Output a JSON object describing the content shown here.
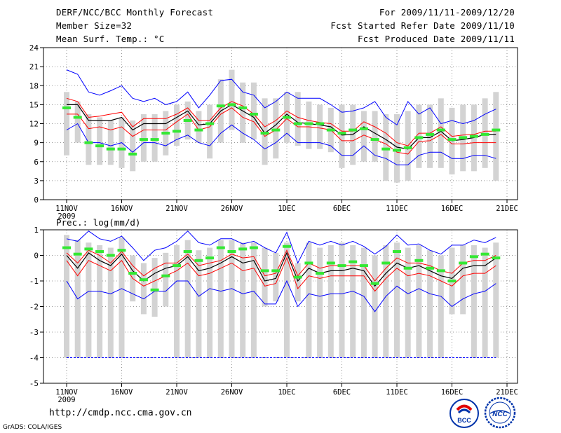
{
  "header": {
    "title": "DERF/NCC/BCC Monthly Forecast",
    "member_size": "Member Size=32",
    "variable": "Mean Surf. Temp.: °C",
    "period": "For 2009/11/11-2009/12/20",
    "refer_date": "Fcst Started Refer Date 2009/11/10",
    "produced_date": "Fcst Produced Date 2009/11/11"
  },
  "footer": {
    "url": "http://cmdp.ncc.cma.gov.cn",
    "credit": "GrADS: COLA/IGES",
    "logo_bcc": "BCC",
    "logo_ncc": "NCC"
  },
  "colors": {
    "mean": "#000000",
    "max_min": "#0000ff",
    "std": "#ff0000",
    "obs": "#33e833",
    "bar": "#d3d3d3",
    "grid": "#777777"
  },
  "chart_data": [
    {
      "type": "line",
      "title": "Mean Surf. Temp.: °C",
      "ylim": [
        0,
        24
      ],
      "yticks": [
        0,
        3,
        6,
        9,
        12,
        15,
        18,
        21,
        24
      ],
      "xlim": [
        1,
        40
      ],
      "xticks": [
        {
          "day": 1,
          "label": "11NOV",
          "sub": "2009"
        },
        {
          "day": 6,
          "label": "16NOV"
        },
        {
          "day": 11,
          "label": "21NOV"
        },
        {
          "day": 16,
          "label": "26NOV"
        },
        {
          "day": 21,
          "label": "1DEC"
        },
        {
          "day": 26,
          "label": "6DEC"
        },
        {
          "day": 31,
          "label": "11DEC"
        },
        {
          "day": 36,
          "label": "16DEC"
        },
        {
          "day": 41,
          "label": "21DEC"
        }
      ],
      "days": [
        1,
        2,
        3,
        4,
        5,
        6,
        7,
        8,
        9,
        10,
        11,
        12,
        13,
        14,
        15,
        16,
        17,
        18,
        19,
        20,
        21,
        22,
        23,
        24,
        25,
        26,
        27,
        28,
        29,
        30,
        31,
        32,
        33,
        34,
        35,
        36,
        37,
        38,
        39,
        40
      ],
      "series": [
        {
          "name": "max",
          "values": [
            20.5,
            19.8,
            17.0,
            16.5,
            17.2,
            18.0,
            16.0,
            15.5,
            16.0,
            15.0,
            15.5,
            17.0,
            14.5,
            16.5,
            18.8,
            19.0,
            17.0,
            16.5,
            14.5,
            15.5,
            17.0,
            16.0,
            16.0,
            16.0,
            15.0,
            13.8,
            14.0,
            14.5,
            15.5,
            13.0,
            11.8,
            15.5,
            13.5,
            14.5,
            12.0,
            12.5,
            12.0,
            12.5,
            13.5,
            14.3
          ]
        },
        {
          "name": "mean_plus_std",
          "values": [
            16.0,
            15.5,
            13.0,
            13.2,
            13.5,
            13.8,
            11.5,
            12.8,
            12.8,
            12.8,
            13.5,
            14.5,
            12.5,
            12.5,
            14.5,
            15.5,
            14.8,
            13.5,
            11.5,
            12.5,
            14.0,
            13.0,
            12.5,
            12.2,
            12.0,
            10.8,
            10.8,
            12.3,
            11.5,
            10.5,
            9.0,
            8.5,
            10.5,
            10.5,
            11.5,
            10.0,
            10.2,
            10.3,
            10.8,
            10.8
          ]
        },
        {
          "name": "mean",
          "values": [
            15.0,
            15.0,
            12.5,
            12.5,
            12.5,
            13.0,
            11.0,
            12.0,
            12.0,
            12.0,
            13.0,
            14.0,
            11.8,
            12.0,
            14.0,
            15.0,
            14.0,
            13.0,
            10.5,
            11.8,
            13.5,
            12.2,
            12.0,
            11.8,
            11.5,
            10.2,
            10.3,
            11.5,
            10.5,
            9.5,
            8.3,
            8.0,
            9.8,
            9.8,
            10.8,
            9.3,
            9.5,
            9.8,
            10.3,
            10.3
          ]
        },
        {
          "name": "mean_minus_std",
          "values": [
            13.5,
            13.5,
            11.2,
            11.5,
            11.0,
            11.5,
            10.0,
            11.0,
            11.0,
            11.0,
            12.3,
            13.5,
            11.0,
            11.5,
            13.5,
            14.5,
            13.0,
            12.3,
            10.0,
            11.0,
            12.8,
            11.5,
            11.5,
            11.3,
            11.0,
            9.3,
            9.3,
            10.2,
            9.5,
            8.8,
            7.5,
            7.2,
            9.2,
            9.3,
            10.3,
            8.8,
            8.8,
            9.0,
            9.0,
            9.0
          ]
        },
        {
          "name": "min",
          "values": [
            11.0,
            12.0,
            9.0,
            9.0,
            8.5,
            9.0,
            7.5,
            9.0,
            9.0,
            8.5,
            9.5,
            10.2,
            9.0,
            8.5,
            10.5,
            11.8,
            10.5,
            9.5,
            8.0,
            9.0,
            10.5,
            9.0,
            9.0,
            9.0,
            8.5,
            7.0,
            7.0,
            8.5,
            7.0,
            6.5,
            5.5,
            5.5,
            7.0,
            7.5,
            7.5,
            6.5,
            6.5,
            7.0,
            7.0,
            6.5
          ]
        },
        {
          "name": "observed",
          "values": [
            14.5,
            13.0,
            9.0,
            8.5,
            8.0,
            8.0,
            7.2,
            9.5,
            9.5,
            10.5,
            10.8,
            12.5,
            11.0,
            12.0,
            14.8,
            15.0,
            14.5,
            13.5,
            10.5,
            11.0,
            13.0,
            12.0,
            12.0,
            12.0,
            11.0,
            10.5,
            11.0,
            11.2,
            9.5,
            8.0,
            7.8,
            8.2,
            9.8,
            10.3,
            11.0,
            9.5,
            9.8,
            10.0,
            10.3,
            11.0
          ]
        },
        {
          "name": "obs_spread_upper",
          "values": [
            17.0,
            15.5,
            13.5,
            13.0,
            12.5,
            13.0,
            12.5,
            13.5,
            13.5,
            14.0,
            15.0,
            15.5,
            14.0,
            15.0,
            19.0,
            20.5,
            18.5,
            18.5,
            16.0,
            16.0,
            17.0,
            17.0,
            15.5,
            15.0,
            14.5,
            15.0,
            15.0,
            14.0,
            14.0,
            13.5,
            13.5,
            14.0,
            15.0,
            15.0,
            16.0,
            14.5,
            15.0,
            15.0,
            16.0,
            17.0
          ]
        },
        {
          "name": "obs_spread_lower",
          "values": [
            7.0,
            9.0,
            5.5,
            5.5,
            5.5,
            5.0,
            4.5,
            6.0,
            6.0,
            7.0,
            8.5,
            9.5,
            9.0,
            6.5,
            9.0,
            11.0,
            9.0,
            9.5,
            5.5,
            6.5,
            9.0,
            8.5,
            8.0,
            8.0,
            7.5,
            5.0,
            5.5,
            6.0,
            6.0,
            3.0,
            2.7,
            3.0,
            5.0,
            5.0,
            5.0,
            4.0,
            4.5,
            4.5,
            5.0,
            3.0
          ]
        }
      ]
    },
    {
      "type": "line",
      "title": "Prec.: log(mm/d)",
      "ylim": [
        -5,
        1
      ],
      "yticks": [
        -5,
        -4,
        -3,
        -2,
        -1,
        0,
        1
      ],
      "xlim": [
        1,
        40
      ],
      "xticks": [
        {
          "day": 1,
          "label": "11NOV",
          "sub": "2009"
        },
        {
          "day": 6,
          "label": "16NOV"
        },
        {
          "day": 11,
          "label": "21NOV"
        },
        {
          "day": 16,
          "label": "26NOV"
        },
        {
          "day": 21,
          "label": "1DEC"
        },
        {
          "day": 26,
          "label": "6DEC"
        },
        {
          "day": 31,
          "label": "11DEC"
        },
        {
          "day": 36,
          "label": "16DEC"
        },
        {
          "day": 41,
          "label": "21DEC"
        }
      ],
      "days": [
        1,
        2,
        3,
        4,
        5,
        6,
        7,
        8,
        9,
        10,
        11,
        12,
        13,
        14,
        15,
        16,
        17,
        18,
        19,
        20,
        21,
        22,
        23,
        24,
        25,
        26,
        27,
        28,
        29,
        30,
        31,
        32,
        33,
        34,
        35,
        36,
        37,
        38,
        39,
        40
      ],
      "series": [
        {
          "name": "max",
          "values": [
            0.65,
            0.55,
            0.95,
            0.65,
            0.55,
            0.75,
            0.3,
            -0.2,
            0.2,
            0.3,
            0.55,
            0.95,
            0.5,
            0.4,
            0.65,
            0.65,
            0.45,
            0.55,
            0.3,
            0.1,
            0.9,
            -0.3,
            0.55,
            0.4,
            0.55,
            0.4,
            0.55,
            0.35,
            0.05,
            0.35,
            0.8,
            0.4,
            0.45,
            0.2,
            0.05,
            0.4,
            0.4,
            0.6,
            0.5,
            0.7
          ]
        },
        {
          "name": "mean_plus_std",
          "values": [
            0.1,
            -0.3,
            0.2,
            0.0,
            -0.3,
            0.15,
            -0.4,
            -0.8,
            -0.5,
            -0.3,
            -0.3,
            0.05,
            -0.4,
            -0.3,
            -0.2,
            0.05,
            -0.1,
            -0.05,
            -0.8,
            -0.7,
            0.2,
            -0.8,
            -0.3,
            -0.5,
            -0.4,
            -0.4,
            -0.4,
            -0.4,
            -1.0,
            -0.5,
            -0.1,
            -0.3,
            -0.3,
            -0.4,
            -0.6,
            -0.7,
            -0.3,
            -0.2,
            -0.2,
            0.0
          ]
        },
        {
          "name": "mean",
          "values": [
            0.0,
            -0.5,
            0.1,
            -0.2,
            -0.4,
            0.05,
            -0.6,
            -1.0,
            -0.7,
            -0.5,
            -0.4,
            -0.05,
            -0.6,
            -0.5,
            -0.3,
            -0.05,
            -0.3,
            -0.2,
            -1.0,
            -0.9,
            0.1,
            -1.0,
            -0.5,
            -0.7,
            -0.6,
            -0.6,
            -0.5,
            -0.6,
            -1.2,
            -0.7,
            -0.3,
            -0.5,
            -0.4,
            -0.6,
            -0.8,
            -0.9,
            -0.5,
            -0.4,
            -0.4,
            -0.1
          ]
        },
        {
          "name": "mean_minus_std",
          "values": [
            -0.2,
            -0.8,
            -0.2,
            -0.4,
            -0.6,
            -0.2,
            -0.9,
            -1.2,
            -1.0,
            -0.8,
            -0.6,
            -0.3,
            -0.8,
            -0.7,
            -0.5,
            -0.3,
            -0.6,
            -0.5,
            -1.2,
            -1.1,
            -0.1,
            -1.3,
            -0.8,
            -0.9,
            -0.8,
            -0.8,
            -0.8,
            -0.8,
            -1.4,
            -0.9,
            -0.5,
            -0.8,
            -0.7,
            -0.8,
            -1.0,
            -1.2,
            -0.8,
            -0.7,
            -0.7,
            -0.4
          ]
        },
        {
          "name": "min",
          "values": [
            -1.0,
            -1.7,
            -1.4,
            -1.4,
            -1.5,
            -1.3,
            -1.5,
            -1.7,
            -1.4,
            -1.4,
            -1.0,
            -1.0,
            -1.6,
            -1.3,
            -1.4,
            -1.3,
            -1.5,
            -1.4,
            -1.9,
            -1.9,
            -1.0,
            -2.0,
            -1.5,
            -1.6,
            -1.5,
            -1.5,
            -1.4,
            -1.6,
            -2.2,
            -1.6,
            -1.2,
            -1.5,
            -1.3,
            -1.5,
            -1.6,
            -2.0,
            -1.7,
            -1.5,
            -1.4,
            -1.1
          ]
        },
        {
          "name": "observed",
          "values": [
            0.3,
            0.05,
            0.25,
            0.15,
            0.0,
            0.2,
            -0.7,
            -0.95,
            -1.35,
            -0.8,
            -0.4,
            0.15,
            -0.2,
            -0.1,
            0.3,
            0.15,
            0.25,
            0.3,
            -0.6,
            -0.6,
            0.35,
            -0.85,
            -0.3,
            -0.7,
            -0.3,
            -0.4,
            -0.25,
            -0.4,
            -1.1,
            -0.3,
            0.15,
            -0.5,
            -0.2,
            -0.5,
            -0.6,
            -1.0,
            -0.3,
            -0.05,
            0.05,
            -0.1
          ]
        },
        {
          "name": "obs_spread_upper",
          "values": [
            0.8,
            0.6,
            0.5,
            0.4,
            0.3,
            0.7,
            0.0,
            -0.3,
            -0.1,
            0.1,
            0.4,
            0.6,
            0.2,
            0.3,
            0.6,
            0.6,
            0.5,
            0.5,
            0.3,
            0.1,
            0.5,
            -0.3,
            0.5,
            0.3,
            0.4,
            0.5,
            0.4,
            0.3,
            0.0,
            0.4,
            0.5,
            0.3,
            0.4,
            0.2,
            0.0,
            0.3,
            0.4,
            0.4,
            0.3,
            0.5
          ]
        },
        {
          "name": "obs_spread_lower",
          "values": [
            -4.0,
            -4.0,
            -4.0,
            -4.0,
            -4.0,
            -4.0,
            -1.8,
            -2.3,
            -2.4,
            -2.0,
            -4.0,
            -4.0,
            -4.0,
            -4.0,
            -4.0,
            -4.0,
            -4.0,
            -4.0,
            -2.0,
            -1.8,
            -4.0,
            -1.8,
            -4.0,
            -4.0,
            -4.0,
            -4.0,
            -4.0,
            -4.0,
            -4.0,
            -4.0,
            -4.0,
            -4.0,
            -4.0,
            -4.0,
            -4.0,
            -2.3,
            -2.3,
            -4.0,
            -4.0,
            -4.0
          ]
        },
        {
          "name": "dry_threshold",
          "values": [
            -4.0,
            -4.0
          ]
        }
      ]
    }
  ]
}
